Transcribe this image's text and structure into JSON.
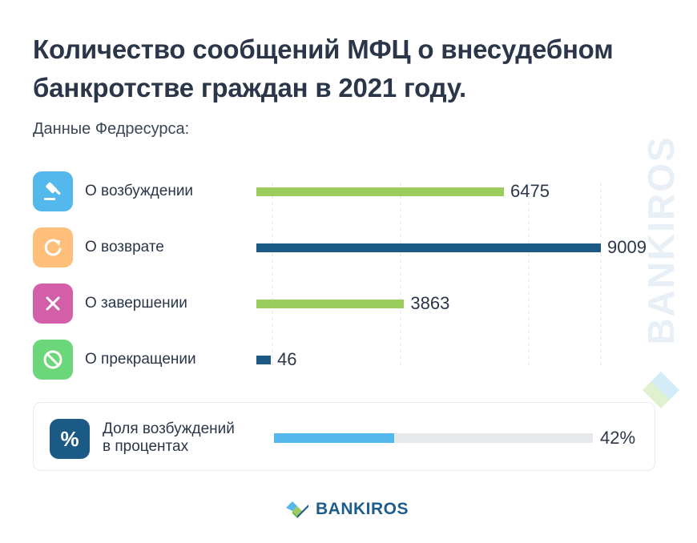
{
  "title_line1": "Количество сообщений МФЦ о внесудебном",
  "title_line2": "банкротстве граждан в 2021 году.",
  "subtitle": "Данные Федресурса:",
  "watermark": "BANKIROS",
  "brand": {
    "name": "BANKIROS",
    "icon": "bankiros-logo-icon"
  },
  "colors": {
    "green_bar": "#9acd5e",
    "navy_bar": "#1c5a86",
    "share_fill": "#55b8ec",
    "share_track": "#e7e8ea"
  },
  "rows": [
    {
      "label": "О возбуждении",
      "icon": "gavel-icon",
      "icon_color": "#55b8ec",
      "bar_color": "#9acd5e"
    },
    {
      "label": "О возврате",
      "icon": "refresh-icon",
      "icon_color": "#fdbf7a",
      "bar_color": "#1c5a86"
    },
    {
      "label": "О завершении",
      "icon": "close-icon",
      "icon_color": "#d35fa8",
      "bar_color": "#9acd5e"
    },
    {
      "label": "О прекращении",
      "icon": "forbidden-icon",
      "icon_color": "#6bd67a",
      "bar_color": "#1c5a86"
    }
  ],
  "chart_data": {
    "type": "bar",
    "orientation": "horizontal",
    "title": "Количество сообщений МФЦ о внесудебном банкротстве граждан в 2021 году.",
    "subtitle": "Данные Федресурса:",
    "categories": [
      "О возбуждении",
      "О возврате",
      "О завершении",
      "О прекращении"
    ],
    "values": [
      6475,
      9009,
      3863,
      46
    ],
    "value_labels": [
      "6475",
      "9009",
      "3863",
      "46"
    ],
    "xlim": [
      0,
      9009
    ],
    "grid": true
  },
  "share": {
    "label_line1": "Доля возбуждений",
    "label_line2": "в процентах",
    "value": 42,
    "value_label": "42%",
    "icon": "percent-icon",
    "icon_symbol": "%"
  }
}
